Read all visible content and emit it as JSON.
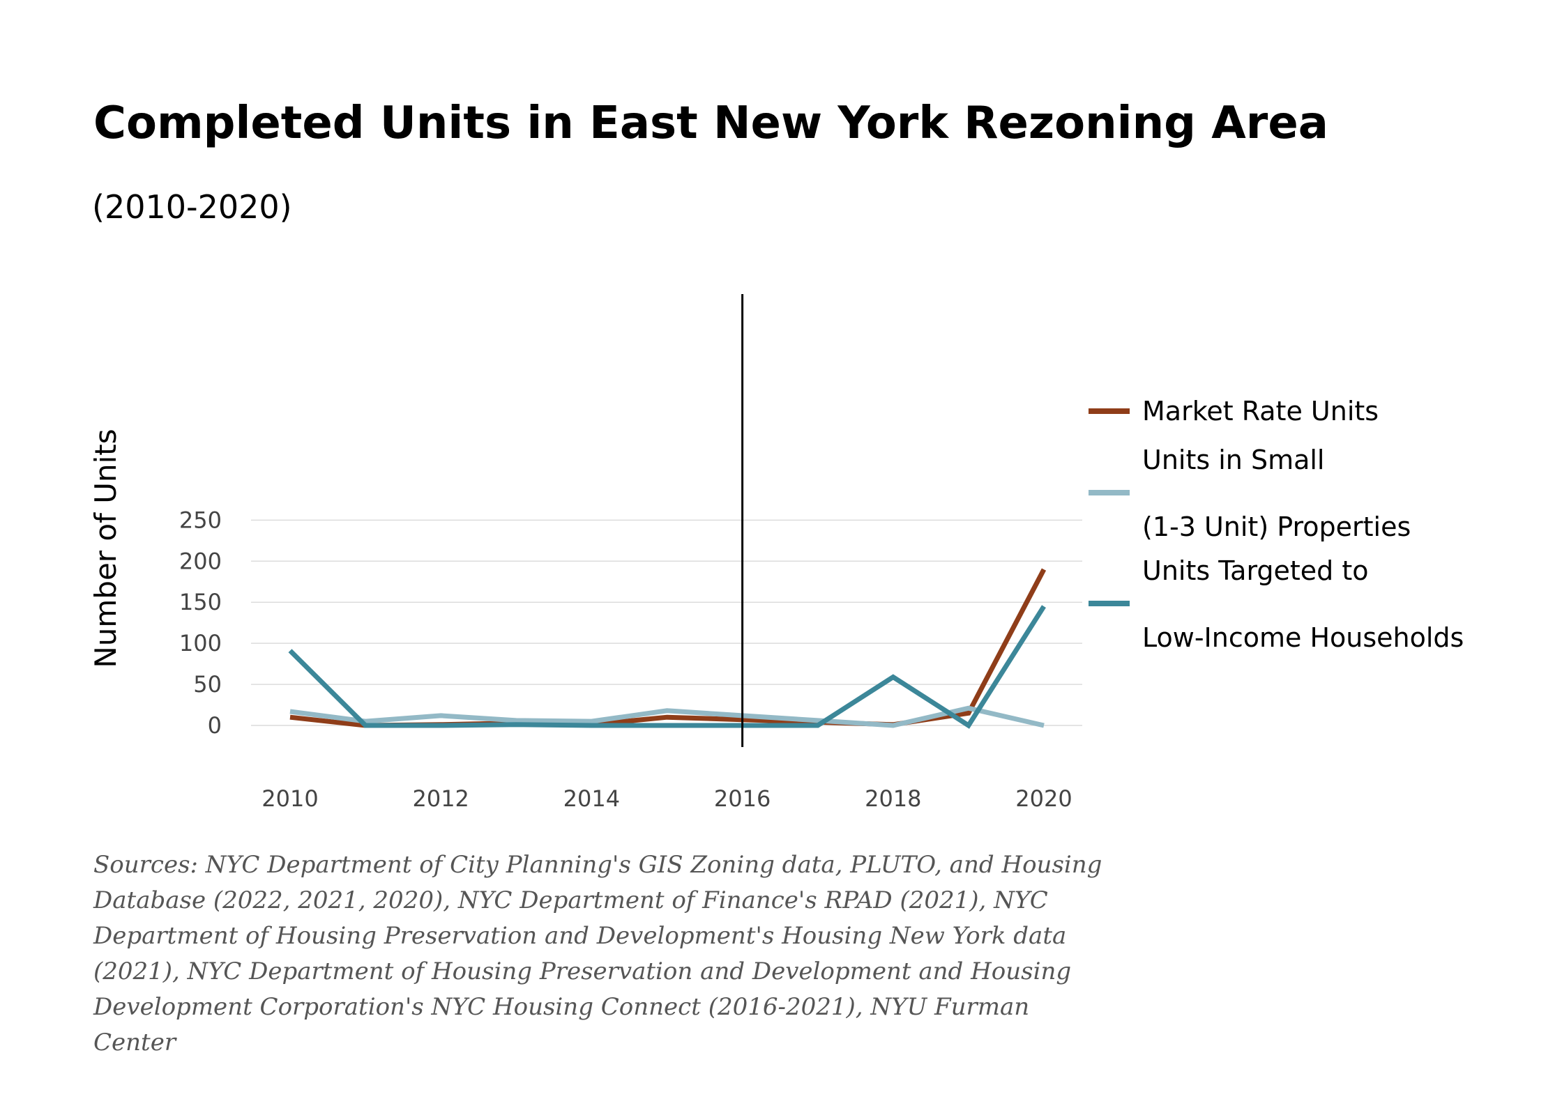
{
  "chart_data": {
    "type": "line",
    "title": "Completed Units in East New York Rezoning Area",
    "subtitle": "(2010-2020)",
    "ylabel": "Number of Units",
    "xlabel": "",
    "x": [
      2010,
      2011,
      2012,
      2013,
      2014,
      2015,
      2016,
      2017,
      2018,
      2019,
      2020
    ],
    "x_tick_labels": [
      "2010",
      "2012",
      "2014",
      "2016",
      "2018",
      "2020"
    ],
    "y_tick_labels": [
      "0",
      "50",
      "100",
      "150",
      "200",
      "250"
    ],
    "ylim": [
      -12,
      262
    ],
    "grid": true,
    "reference_line_x": 2016,
    "legend_position": "right",
    "series": [
      {
        "name": "Market Rate Units",
        "legend_lines": [
          "Market Rate Units"
        ],
        "color": "#8f3d19",
        "values": [
          10,
          0,
          1,
          3,
          1,
          10,
          7,
          4,
          1,
          15,
          190
        ]
      },
      {
        "name": "Units in Small (1-3 Unit) Properties",
        "legend_lines": [
          "Units in Small",
          "(1-3 Unit) Properties"
        ],
        "color": "#93b9c6",
        "values": [
          17,
          5,
          12,
          6,
          5,
          18,
          12,
          6,
          0,
          21,
          0
        ]
      },
      {
        "name": "Units Targeted to Low-Income Households",
        "legend_lines": [
          "Units Targeted to",
          "Low-Income Households"
        ],
        "color": "#3c8799",
        "values": [
          91,
          0,
          0,
          1,
          0,
          0,
          0,
          0,
          59,
          0,
          145
        ]
      }
    ],
    "source": "Sources: NYC Department of City Planning's GIS Zoning data, PLUTO, and Housing Database (2022, 2021, 2020), NYC Department of Finance's RPAD (2021), NYC Department of Housing Preservation and Development's Housing New York data (2021), NYC Department of Housing Preservation and Development and Housing Development Corporation's NYC Housing Connect (2016-2021), NYU Furman Center"
  }
}
